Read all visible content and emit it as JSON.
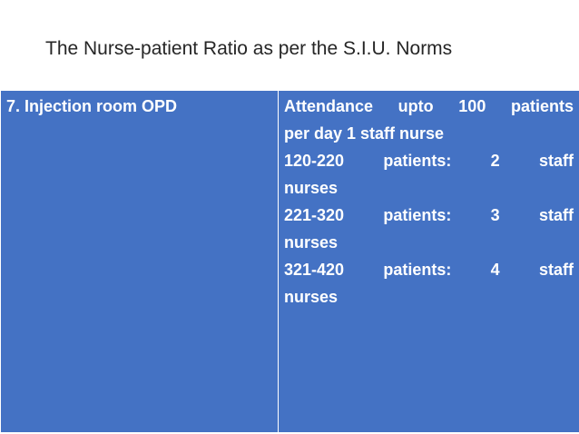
{
  "slide": {
    "title": "The Nurse-patient Ratio as per the S.I.U. Norms"
  },
  "table": {
    "left_cell": "7.  Injection room OPD",
    "right_lines": [
      "Attendance  upto  100  patients",
      "per day 1 staff nurse",
      "120-220  patients:  2  staff",
      "nurses",
      "221-320  patients:  3  staff",
      "nurses",
      "321-420  patients:  4  staff",
      "nurses"
    ]
  },
  "colors": {
    "table_fill": "#4472c4",
    "table_text": "#ffffff",
    "title_text": "#262626"
  }
}
